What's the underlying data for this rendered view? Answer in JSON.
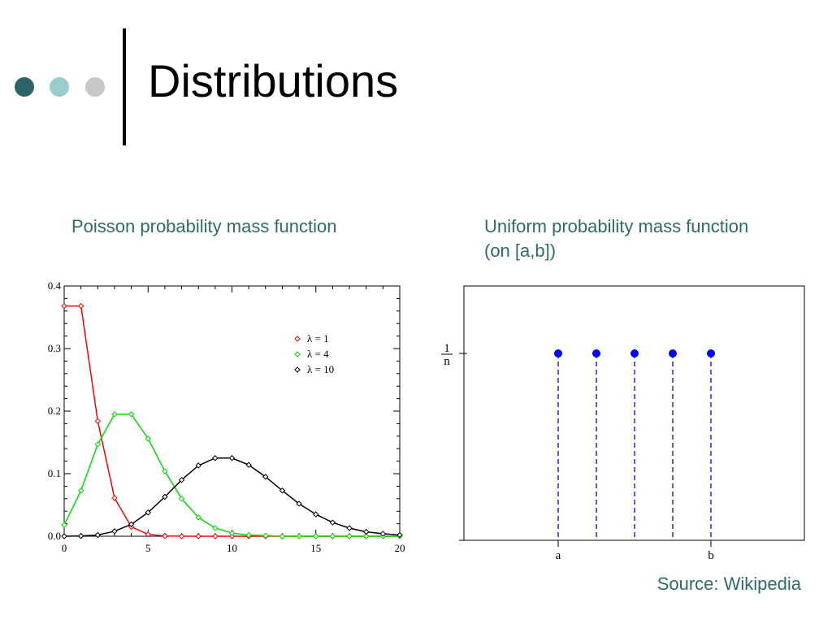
{
  "slide": {
    "title": "Distributions",
    "source": "Source: Wikipedia",
    "bullet_colors": [
      "#2f6466",
      "#99cccc",
      "#c8c8c8"
    ]
  },
  "left": {
    "caption": "Poisson probability mass function"
  },
  "right": {
    "caption_line1": "Uniform probability mass function",
    "caption_line2": "(on [a,b])"
  },
  "chart_data": [
    {
      "type": "line",
      "x": [
        0,
        1,
        2,
        3,
        4,
        5,
        6,
        7,
        8,
        9,
        10,
        11,
        12,
        13,
        14,
        15,
        16,
        17,
        18,
        19,
        20
      ],
      "xlim": [
        0,
        20
      ],
      "ylim": [
        0,
        0.4
      ],
      "xticks": [
        "0",
        "5",
        "10",
        "15",
        "20"
      ],
      "yticks": [
        "0.0",
        "0.1",
        "0.2",
        "0.3",
        "0.4"
      ],
      "legend_position": "top-right",
      "series": [
        {
          "name": "λ = 1",
          "color": "#ff0000",
          "values": [
            0.368,
            0.368,
            0.184,
            0.061,
            0.015,
            0.003,
            0.0005,
            0.0001,
            0,
            0,
            0,
            0,
            0,
            0,
            0,
            0,
            0,
            0,
            0,
            0,
            0
          ]
        },
        {
          "name": "λ = 4",
          "color": "#00e000",
          "values": [
            0.018,
            0.073,
            0.147,
            0.195,
            0.195,
            0.156,
            0.104,
            0.06,
            0.03,
            0.013,
            0.005,
            0.002,
            0.001,
            0,
            0,
            0,
            0,
            0,
            0,
            0,
            0
          ]
        },
        {
          "name": "λ = 10",
          "color": "#000000",
          "values": [
            0,
            0.0005,
            0.002,
            0.008,
            0.019,
            0.038,
            0.063,
            0.09,
            0.113,
            0.125,
            0.125,
            0.114,
            0.095,
            0.073,
            0.052,
            0.035,
            0.022,
            0.013,
            0.007,
            0.004,
            0.002
          ]
        }
      ]
    },
    {
      "type": "scatter",
      "points": [
        {
          "x": 0,
          "y": 1
        },
        {
          "x": 1,
          "y": 1
        },
        {
          "x": 2,
          "y": 1
        },
        {
          "x": 3,
          "y": 1
        },
        {
          "x": 4,
          "y": 1
        }
      ],
      "y_tick_numerator": "1",
      "y_tick_denominator": "n",
      "x_tick_left": "a",
      "x_tick_right": "b",
      "color": "#0000ff"
    }
  ]
}
